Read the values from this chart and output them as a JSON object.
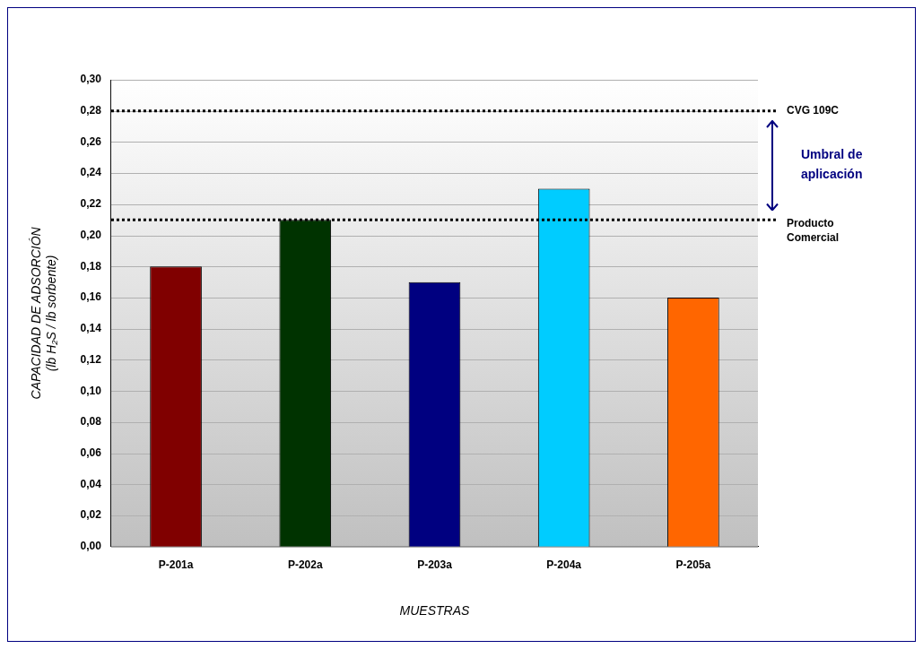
{
  "chart_data": {
    "type": "bar",
    "xlabel": "MUESTRAS",
    "ylabel": "CAPACIDAD DE ADSORCIÓN\n(lb H₂S / lb sorbente)",
    "categories": [
      "P-201a",
      "P-202a",
      "P-203a",
      "P-204a",
      "P-205a"
    ],
    "values": [
      0.18,
      0.21,
      0.17,
      0.23,
      0.16
    ],
    "colors": [
      "#800000",
      "#003300",
      "#000080",
      "#00ccff",
      "#ff6600"
    ],
    "ylim": [
      0,
      0.3
    ],
    "yticks": [
      {
        "value": 0,
        "label": "0,00"
      },
      {
        "value": 0.02,
        "label": "0,02"
      },
      {
        "value": 0.04,
        "label": "0,04"
      },
      {
        "value": 0.06,
        "label": "0,06"
      },
      {
        "value": 0.08,
        "label": "0,08"
      },
      {
        "value": 0.1,
        "label": "0,10"
      },
      {
        "value": 0.12,
        "label": "0,12"
      },
      {
        "value": 0.14,
        "label": "0,14"
      },
      {
        "value": 0.16,
        "label": "0,16"
      },
      {
        "value": 0.18,
        "label": "0,18"
      },
      {
        "value": 0.2,
        "label": "0,20"
      },
      {
        "value": 0.22,
        "label": "0,22"
      },
      {
        "value": 0.24,
        "label": "0,24"
      },
      {
        "value": 0.26,
        "label": "0,26"
      },
      {
        "value": 0.28,
        "label": "0,28"
      },
      {
        "value": 0.3,
        "label": "0,30"
      }
    ],
    "grid": "y",
    "legend": false,
    "ref_lines": [
      {
        "axis": "y",
        "value": 0.28,
        "label": "CVG 109C",
        "color": "#000000",
        "line_style": "dotted"
      },
      {
        "axis": "y",
        "value": 0.21,
        "label": "Producto Comercial",
        "color": "#000000",
        "line_style": "dotted"
      }
    ],
    "annotations": [
      "Umbral de aplicación"
    ]
  }
}
